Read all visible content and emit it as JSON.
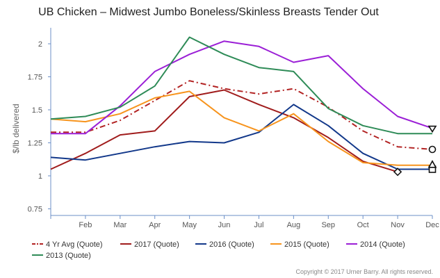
{
  "chart_data": {
    "type": "line",
    "title": "UB Chicken – Midwest Jumbo Boneless/Skinless Breasts Tender Out",
    "ylabel": "$/lb delivered",
    "xlabel": "",
    "x_positions": [
      1,
      2,
      3,
      4,
      5,
      6,
      7,
      8,
      9,
      10,
      11,
      12
    ],
    "x_tick_labels": [
      "",
      "Feb",
      "Mar",
      "Apr",
      "May",
      "Jun",
      "Jul",
      "Aug",
      "Sep",
      "Oct",
      "Nov",
      "Dec"
    ],
    "y_ticks": [
      0.75,
      1,
      1.25,
      1.5,
      1.75,
      2
    ],
    "y_tick_labels": [
      "0.75",
      "1",
      "1.25",
      "1.5",
      "1.75",
      "2"
    ],
    "ylim": [
      0.7,
      2.1
    ],
    "xlim": [
      1,
      12
    ],
    "grid": false,
    "legend_position": "bottom",
    "series": [
      {
        "name": "4 Yr Avg (Quote)",
        "color": "#b22222",
        "dash": true,
        "values": [
          1.33,
          1.33,
          1.42,
          1.57,
          1.72,
          1.66,
          1.62,
          1.66,
          1.52,
          1.34,
          1.22,
          1.2
        ]
      },
      {
        "name": "2017 (Quote)",
        "color": "#a01c1c",
        "dash": false,
        "values": [
          1.05,
          1.17,
          1.31,
          1.34,
          1.6,
          1.65,
          1.54,
          1.44,
          1.29,
          1.11,
          1.03,
          null
        ]
      },
      {
        "name": "2016 (Quote)",
        "color": "#12388a",
        "dash": false,
        "values": [
          1.14,
          1.12,
          1.17,
          1.22,
          1.26,
          1.25,
          1.33,
          1.54,
          1.38,
          1.17,
          1.05,
          1.05
        ]
      },
      {
        "name": "2015 (Quote)",
        "color": "#f7941d",
        "dash": false,
        "values": [
          1.43,
          1.41,
          1.47,
          1.59,
          1.64,
          1.44,
          1.34,
          1.47,
          1.26,
          1.1,
          1.08,
          1.08
        ]
      },
      {
        "name": "2014 (Quote)",
        "color": "#9b1fd6",
        "dash": false,
        "values": [
          1.32,
          1.32,
          1.53,
          1.79,
          1.92,
          2.02,
          1.98,
          1.86,
          1.91,
          1.66,
          1.45,
          1.36
        ]
      },
      {
        "name": "2013 (Quote)",
        "color": "#2e8b57",
        "dash": false,
        "values": [
          1.43,
          1.45,
          1.52,
          1.68,
          2.05,
          1.92,
          1.82,
          1.79,
          1.51,
          1.38,
          1.32,
          1.32
        ]
      }
    ],
    "credit": "Copyright © 2017 Urner Barry. All rights reserved."
  }
}
